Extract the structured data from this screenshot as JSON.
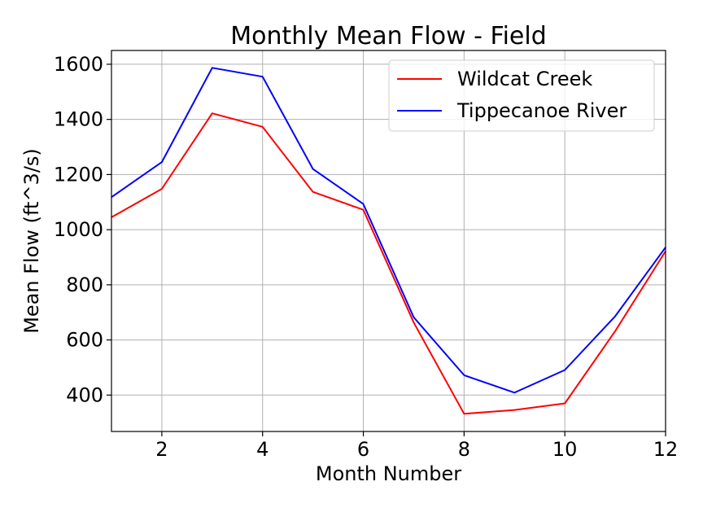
{
  "chart_data": {
    "type": "line",
    "title": "Monthly Mean Flow - Field",
    "xlabel": "Month Number",
    "ylabel": "Mean Flow (ft^3/s)",
    "x": [
      1,
      2,
      3,
      4,
      5,
      6,
      7,
      8,
      9,
      10,
      11,
      12
    ],
    "xlim": [
      1,
      12
    ],
    "ylim": [
      268,
      1650
    ],
    "xticks": [
      2,
      4,
      6,
      8,
      10,
      12
    ],
    "xtick_labels": [
      "2",
      "4",
      "6",
      "8",
      "10",
      "12"
    ],
    "yticks": [
      400,
      600,
      800,
      1000,
      1200,
      1400,
      1600
    ],
    "ytick_labels": [
      "400",
      "600",
      "800",
      "1000",
      "1200",
      "1400",
      "1600"
    ],
    "grid": true,
    "legend_position": "top-right",
    "series": [
      {
        "name": "Wildcat Creek",
        "color": "#ff0000",
        "values": [
          1045,
          1148,
          1422,
          1373,
          1137,
          1072,
          663,
          332,
          346,
          370,
          632,
          922
        ]
      },
      {
        "name": "Tippecanoe River",
        "color": "#0000ff",
        "values": [
          1118,
          1245,
          1587,
          1555,
          1220,
          1093,
          682,
          472,
          409,
          491,
          686,
          936
        ]
      }
    ]
  }
}
